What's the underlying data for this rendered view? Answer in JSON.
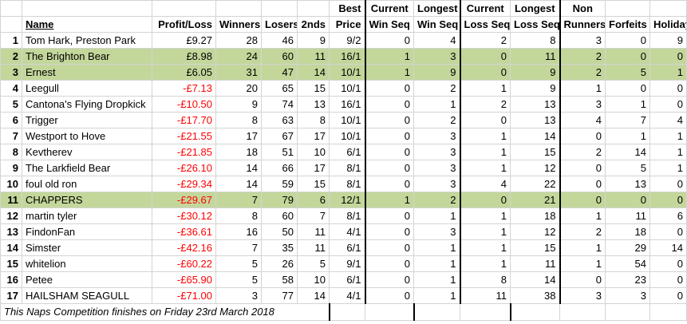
{
  "headers": {
    "name": "Name",
    "profit_loss": "Profit/Loss",
    "winners": "Winners",
    "losers": "Losers",
    "seconds": "2nds",
    "best_price_top": "Best",
    "best_price_bottom": "Price",
    "current_win_seq_top": "Current",
    "current_win_seq_bottom": "Win Seq",
    "longest_win_seq_top": "Longest",
    "longest_win_seq_bottom": "Win Seq",
    "current_loss_seq_top": "Current",
    "current_loss_seq_bottom": "Loss Seq",
    "longest_loss_seq_top": "Longest",
    "longest_loss_seq_bottom": "Loss Seq",
    "non_runners_top": "Non",
    "non_runners_bottom": "Runners",
    "forfeits": "Forfeits",
    "holiday": "Holiday"
  },
  "rows": [
    {
      "pos": "1",
      "name": "Tom Hark, Preston Park",
      "pl": "£9.27",
      "negative": false,
      "winners": "28",
      "losers": "46",
      "seconds": "9",
      "best": "9/2",
      "cws": "0",
      "lws": "4",
      "cls": "2",
      "lls": "8",
      "nr": "3",
      "forfeits": "0",
      "holiday": "9",
      "highlight": false
    },
    {
      "pos": "2",
      "name": "The Brighton Bear",
      "pl": "£8.98",
      "negative": false,
      "winners": "24",
      "losers": "60",
      "seconds": "11",
      "best": "16/1",
      "cws": "1",
      "lws": "3",
      "cls": "0",
      "lls": "11",
      "nr": "2",
      "forfeits": "0",
      "holiday": "0",
      "highlight": true
    },
    {
      "pos": "3",
      "name": "Ernest",
      "pl": "£6.05",
      "negative": false,
      "winners": "31",
      "losers": "47",
      "seconds": "14",
      "best": "10/1",
      "cws": "1",
      "lws": "9",
      "cls": "0",
      "lls": "9",
      "nr": "2",
      "forfeits": "5",
      "holiday": "1",
      "highlight": true
    },
    {
      "pos": "4",
      "name": "Leegull",
      "pl": "-£7.13",
      "negative": true,
      "winners": "20",
      "losers": "65",
      "seconds": "15",
      "best": "10/1",
      "cws": "0",
      "lws": "2",
      "cls": "1",
      "lls": "9",
      "nr": "1",
      "forfeits": "0",
      "holiday": "0",
      "highlight": false
    },
    {
      "pos": "5",
      "name": "Cantona's Flying Dropkick",
      "pl": "-£10.50",
      "negative": true,
      "winners": "9",
      "losers": "74",
      "seconds": "13",
      "best": "16/1",
      "cws": "0",
      "lws": "1",
      "cls": "2",
      "lls": "13",
      "nr": "3",
      "forfeits": "1",
      "holiday": "0",
      "highlight": false
    },
    {
      "pos": "6",
      "name": "Trigger",
      "pl": "-£17.70",
      "negative": true,
      "winners": "8",
      "losers": "63",
      "seconds": "8",
      "best": "10/1",
      "cws": "0",
      "lws": "2",
      "cls": "0",
      "lls": "13",
      "nr": "4",
      "forfeits": "7",
      "holiday": "4",
      "highlight": false
    },
    {
      "pos": "7",
      "name": "Westport to Hove",
      "pl": "-£21.55",
      "negative": true,
      "winners": "17",
      "losers": "67",
      "seconds": "17",
      "best": "10/1",
      "cws": "0",
      "lws": "3",
      "cls": "1",
      "lls": "14",
      "nr": "0",
      "forfeits": "1",
      "holiday": "1",
      "highlight": false
    },
    {
      "pos": "8",
      "name": "Kevtherev",
      "pl": "-£21.85",
      "negative": true,
      "winners": "18",
      "losers": "51",
      "seconds": "10",
      "best": "6/1",
      "cws": "0",
      "lws": "3",
      "cls": "1",
      "lls": "15",
      "nr": "2",
      "forfeits": "14",
      "holiday": "1",
      "highlight": false
    },
    {
      "pos": "9",
      "name": "The Larkfield Bear",
      "pl": "-£26.10",
      "negative": true,
      "winners": "14",
      "losers": "66",
      "seconds": "17",
      "best": "8/1",
      "cws": "0",
      "lws": "3",
      "cls": "1",
      "lls": "12",
      "nr": "0",
      "forfeits": "5",
      "holiday": "1",
      "highlight": false
    },
    {
      "pos": "10",
      "name": "foul old ron",
      "pl": "-£29.34",
      "negative": true,
      "winners": "14",
      "losers": "59",
      "seconds": "15",
      "best": "8/1",
      "cws": "0",
      "lws": "3",
      "cls": "4",
      "lls": "22",
      "nr": "0",
      "forfeits": "13",
      "holiday": "0",
      "highlight": false
    },
    {
      "pos": "11",
      "name": "CHAPPERS",
      "pl": "-£29.67",
      "negative": true,
      "winners": "7",
      "losers": "79",
      "seconds": "6",
      "best": "12/1",
      "cws": "1",
      "lws": "2",
      "cls": "0",
      "lls": "21",
      "nr": "0",
      "forfeits": "0",
      "holiday": "0",
      "highlight": true
    },
    {
      "pos": "12",
      "name": "martin tyler",
      "pl": "-£30.12",
      "negative": true,
      "winners": "8",
      "losers": "60",
      "seconds": "7",
      "best": "8/1",
      "cws": "0",
      "lws": "1",
      "cls": "1",
      "lls": "18",
      "nr": "1",
      "forfeits": "11",
      "holiday": "6",
      "highlight": false
    },
    {
      "pos": "13",
      "name": "FindonFan",
      "pl": "-£36.61",
      "negative": true,
      "winners": "16",
      "losers": "50",
      "seconds": "11",
      "best": "4/1",
      "cws": "0",
      "lws": "3",
      "cls": "1",
      "lls": "12",
      "nr": "2",
      "forfeits": "18",
      "holiday": "0",
      "highlight": false
    },
    {
      "pos": "14",
      "name": "Simster",
      "pl": "-£42.16",
      "negative": true,
      "winners": "7",
      "losers": "35",
      "seconds": "11",
      "best": "6/1",
      "cws": "0",
      "lws": "1",
      "cls": "1",
      "lls": "15",
      "nr": "1",
      "forfeits": "29",
      "holiday": "14",
      "highlight": false
    },
    {
      "pos": "15",
      "name": "whitelion",
      "pl": "-£60.22",
      "negative": true,
      "winners": "5",
      "losers": "26",
      "seconds": "5",
      "best": "9/1",
      "cws": "0",
      "lws": "1",
      "cls": "1",
      "lls": "11",
      "nr": "1",
      "forfeits": "54",
      "holiday": "0",
      "highlight": false
    },
    {
      "pos": "16",
      "name": "Petee",
      "pl": "-£65.90",
      "negative": true,
      "winners": "5",
      "losers": "58",
      "seconds": "10",
      "best": "6/1",
      "cws": "0",
      "lws": "1",
      "cls": "8",
      "lls": "14",
      "nr": "0",
      "forfeits": "23",
      "holiday": "0",
      "highlight": false
    },
    {
      "pos": "17",
      "name": "HAILSHAM SEAGULL",
      "pl": "-£71.00",
      "negative": true,
      "winners": "3",
      "losers": "77",
      "seconds": "14",
      "best": "4/1",
      "cws": "0",
      "lws": "1",
      "cls": "11",
      "lls": "38",
      "nr": "3",
      "forfeits": "3",
      "holiday": "0",
      "highlight": false
    }
  ],
  "footer": "This Naps Competition finishes on Friday 23rd March 2018",
  "colors": {
    "highlight": "#c4d79b",
    "negative": "#ff0000",
    "gridline": "#d4d4d4"
  }
}
